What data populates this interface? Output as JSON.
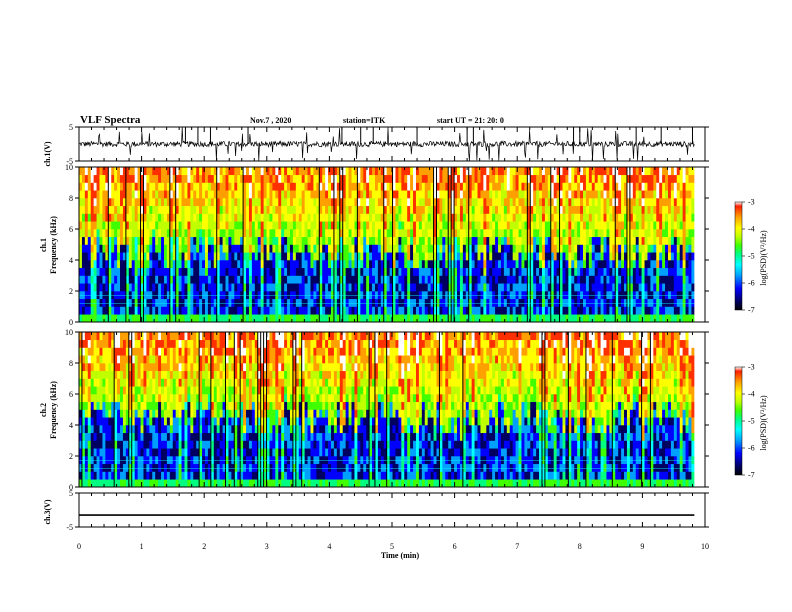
{
  "header": {
    "title": "VLF Spectra",
    "date": "Nov.7 , 2020",
    "station": "station=ITK",
    "start_prefix": "start UT = 21: 20: 0"
  },
  "colorbar": {
    "label": "log(PSD)(V²/Hz)",
    "ticks": [
      -3,
      -4,
      -5,
      -6,
      -7
    ],
    "colormap": [
      "#000000",
      "#000060",
      "#0000ff",
      "#00a0ff",
      "#00ffff",
      "#00ff80",
      "#40ff00",
      "#c0ff00",
      "#ffff00",
      "#ffa000",
      "#ff3000",
      "#ffffff"
    ]
  },
  "chart_data": [
    {
      "type": "line",
      "panel": "ch1-waveform",
      "ylabel": "ch.1(V)",
      "ylim": [
        -5,
        5
      ],
      "yticks": [
        -5,
        5
      ],
      "xlim": [
        0,
        10
      ],
      "baseline_v": 0,
      "note_values": "noisy waveform around ~0 V with spikes to ±5 V"
    },
    {
      "type": "heatmap",
      "panel": "ch1-spectrogram",
      "ylabel": "ch.1",
      "ylabel2": "Frequency (kHz)",
      "ylim": [
        0,
        10
      ],
      "yticks": [
        0,
        2,
        4,
        6,
        8,
        10
      ],
      "xlim": [
        0,
        10
      ],
      "zlim": [
        -7,
        -3
      ]
    },
    {
      "type": "heatmap",
      "panel": "ch2-spectrogram",
      "ylabel": "ch.2",
      "ylabel2": "Frequency (kHz)",
      "ylim": [
        0,
        10
      ],
      "yticks": [
        0,
        2,
        4,
        6,
        8,
        10
      ],
      "xlim": [
        0,
        10
      ],
      "zlim": [
        -7,
        -3
      ]
    },
    {
      "type": "line",
      "panel": "ch3-waveform",
      "ylabel": "ch.3(V)",
      "ylim": [
        -5,
        5
      ],
      "yticks": [
        -5,
        5
      ],
      "xlim": [
        0,
        10
      ],
      "baseline_v": -1.5
    }
  ],
  "xaxis": {
    "label": "Time (min)",
    "ticks": [
      0,
      1,
      2,
      3,
      4,
      5,
      6,
      7,
      8,
      9,
      10
    ]
  }
}
